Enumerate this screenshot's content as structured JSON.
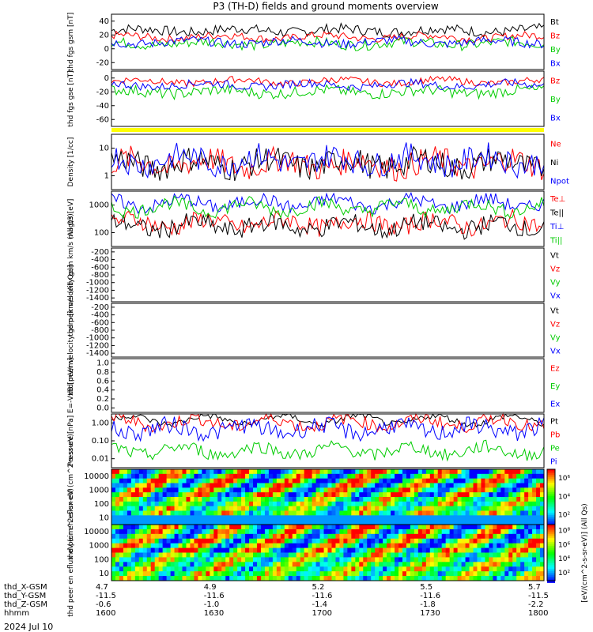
{
  "title": "P3 (TH-D) fields and ground moments overview",
  "date_label": "2024 Jul 10",
  "footer": {
    "rows": [
      {
        "label": "thd_X-GSM",
        "values": [
          "4.7",
          "4.9",
          "5.2",
          "5.5",
          "5.7"
        ]
      },
      {
        "label": "thd_Y-GSM",
        "values": [
          "-11.5",
          "-11.6",
          "-11.6",
          "-11.6",
          "-11.5"
        ]
      },
      {
        "label": "thd_Z-GSM",
        "values": [
          "-0.6",
          "-1.0",
          "-1.4",
          "-1.8",
          "-2.2"
        ]
      },
      {
        "label": "hhmm",
        "values": [
          "1600",
          "1630",
          "1700",
          "1730",
          "1800"
        ]
      }
    ]
  },
  "colorbar": {
    "label": "[eV/(cm^2-s-sr-eV)] (All Qs)",
    "ticks_top": [
      "10^6",
      "10^4",
      "10^2"
    ],
    "ticks_bottom": [
      "10^8",
      "10^6",
      "10^4",
      "10^2"
    ]
  },
  "legend_colors": {
    "black": "#000000",
    "red": "#ff0000",
    "green": "#00cc00",
    "blue": "#0000ff"
  },
  "chart_data": [
    {
      "type": "line",
      "ylabel": "thd fgs gsm [nT]",
      "yticks": [
        "40",
        "20",
        "0",
        "-20"
      ],
      "ylim": [
        -30,
        55
      ],
      "series": [
        {
          "name": "Bt",
          "color": "#000000",
          "level": 30,
          "noise": 8
        },
        {
          "name": "Bz",
          "color": "#ff0000",
          "level": 20,
          "noise": 6
        },
        {
          "name": "By",
          "color": "#00cc00",
          "level": 10,
          "noise": 8
        },
        {
          "name": "Bx",
          "color": "#0000ff",
          "level": 12,
          "noise": 7
        }
      ]
    },
    {
      "type": "line",
      "ylabel": "thd fgs gse [nT]",
      "yticks": [
        "0",
        "-20",
        "-40",
        "-60"
      ],
      "ylim": [
        -70,
        10
      ],
      "series": [
        {
          "name": "Bz",
          "color": "#ff0000",
          "level": -5,
          "noise": 5
        },
        {
          "name": "By",
          "color": "#00cc00",
          "level": -20,
          "noise": 8
        },
        {
          "name": "Bx",
          "color": "#0000ff",
          "level": -10,
          "noise": 6
        }
      ]
    },
    {
      "type": "line",
      "ylabel": "Density [1/cc]",
      "yticks": [
        "10",
        "1"
      ],
      "yscale": "log",
      "ylim": [
        0.3,
        40
      ],
      "series": [
        {
          "name": "Ne",
          "color": "#ff0000",
          "level": 3,
          "noise": 0.5
        },
        {
          "name": "Ni",
          "color": "#000000",
          "level": 3,
          "noise": 0.5
        },
        {
          "name": "Npot",
          "color": "#0000ff",
          "level": 4,
          "noise": 0.5
        }
      ]
    },
    {
      "type": "line",
      "ylabel": "magt3 [eV]",
      "yticks": [
        "1000",
        "100"
      ],
      "yscale": "log",
      "ylim": [
        20,
        5000
      ],
      "series": [
        {
          "name": "Te⊥",
          "color": "#ff0000",
          "level": 200,
          "noise": 0.4
        },
        {
          "name": "Te||",
          "color": "#000000",
          "level": 150,
          "noise": 0.4
        },
        {
          "name": "Ti⊥",
          "color": "#0000ff",
          "level": 1500,
          "noise": 0.3
        },
        {
          "name": "Ti||",
          "color": "#00cc00",
          "level": 1000,
          "noise": 0.3
        }
      ]
    },
    {
      "type": "line",
      "ylabel": "thd peir velocity gsm km/s (All Qs)",
      "yticks": [
        "-200",
        "-400",
        "-600",
        "-800",
        "-1000",
        "-1200",
        "-1400"
      ],
      "ylim": [
        -1450,
        -80
      ],
      "series": [
        {
          "name": "Vt",
          "color": "#000000"
        },
        {
          "name": "Vz",
          "color": "#ff0000"
        },
        {
          "name": "Vy",
          "color": "#00cc00"
        },
        {
          "name": "Vx",
          "color": "#0000ff"
        }
      ]
    },
    {
      "type": "line",
      "ylabel": "thd peer velocity gsm [km/s (All Qs)]",
      "yticks": [
        "-200",
        "-400",
        "-600",
        "-800",
        "-1000",
        "-1200",
        "-1400"
      ],
      "ylim": [
        -1450,
        -80
      ],
      "series": [
        {
          "name": "Vt",
          "color": "#000000"
        },
        {
          "name": "Vz",
          "color": "#ff0000"
        },
        {
          "name": "Vy",
          "color": "#00cc00"
        },
        {
          "name": "Vx",
          "color": "#0000ff"
        }
      ]
    },
    {
      "type": "line",
      "ylabel": "E=-VxB [mV/m]",
      "yticks": [
        "1.0",
        "0.8",
        "0.6",
        "0.4",
        "0.2",
        "0.0"
      ],
      "ylim": [
        -0.1,
        1.1
      ],
      "series": [
        {
          "name": "Ez",
          "color": "#ff0000"
        },
        {
          "name": "Ey",
          "color": "#00cc00"
        },
        {
          "name": "Ex",
          "color": "#0000ff"
        }
      ]
    },
    {
      "type": "line",
      "ylabel": "Pressure [nPa]",
      "yticks": [
        "1.00",
        "0.10",
        "0.01"
      ],
      "yscale": "log",
      "ylim": [
        0.005,
        1.5
      ],
      "series": [
        {
          "name": "Pt",
          "color": "#000000",
          "level": 0.8,
          "noise": 0.15
        },
        {
          "name": "Pb",
          "color": "#ff0000",
          "level": 0.6,
          "noise": 0.3
        },
        {
          "name": "Pe",
          "color": "#00cc00",
          "level": 0.03,
          "noise": 0.3
        },
        {
          "name": "Pi",
          "color": "#0000ff",
          "level": 0.3,
          "noise": 0.4
        }
      ]
    },
    {
      "type": "heatmap",
      "ylabel": "thd peir en eflux eV (cm^2-s-sr-eV)",
      "yticks": [
        "10000",
        "1000",
        "100",
        "10"
      ]
    },
    {
      "type": "heatmap",
      "ylabel": "thd peer en eflux eV (cm^2-s-sr-eV)",
      "yticks": [
        "10000",
        "1000",
        "100",
        "10"
      ]
    }
  ]
}
